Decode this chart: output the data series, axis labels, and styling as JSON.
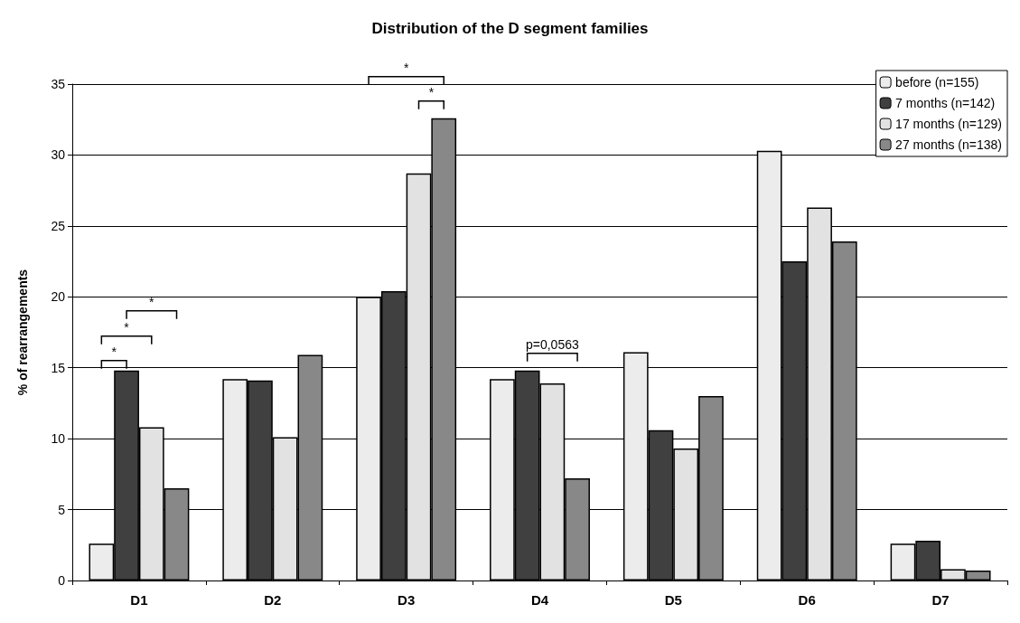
{
  "chart_data": {
    "type": "bar",
    "title": "Distribution of the D segment families",
    "ylabel": "% of rearrangements",
    "categories": [
      "D1",
      "D2",
      "D3",
      "D4",
      "D5",
      "D6",
      "D7"
    ],
    "series": [
      {
        "name": "before (n=155)",
        "color": "#ececec",
        "values": [
          2.6,
          14.2,
          20.0,
          14.2,
          16.1,
          30.3,
          2.6
        ]
      },
      {
        "name": "7 months (n=142)",
        "color": "#404040",
        "values": [
          14.8,
          14.1,
          20.4,
          14.8,
          10.6,
          22.5,
          2.8
        ]
      },
      {
        "name": "17 months (n=129)",
        "color": "#e2e2e2",
        "values": [
          10.8,
          10.1,
          28.7,
          13.9,
          9.3,
          26.3,
          0.8
        ]
      },
      {
        "name": "27 months (n=138)",
        "color": "#888888",
        "values": [
          6.5,
          15.9,
          32.6,
          7.2,
          13.0,
          23.9,
          0.7
        ]
      }
    ],
    "ylim": [
      0,
      35
    ],
    "yticks": [
      0,
      5,
      10,
      15,
      20,
      25,
      30,
      35
    ],
    "grid": "y",
    "legend": "top right",
    "annotations": [
      "*",
      "*",
      "*",
      "*",
      "*",
      "p=0,0563"
    ]
  }
}
